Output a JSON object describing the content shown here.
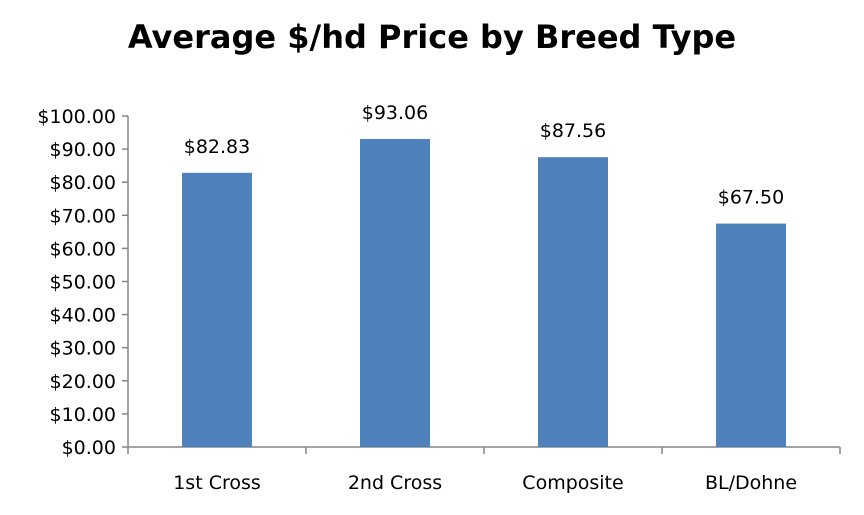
{
  "chart_data": {
    "type": "bar",
    "title": "Average $/hd Price by Breed Type",
    "categories": [
      "1st Cross",
      "2nd Cross",
      "Composite",
      "BL/Dohne"
    ],
    "values": [
      82.83,
      93.06,
      87.56,
      67.5
    ],
    "data_labels": [
      "$82.83",
      "$93.06",
      "$87.56",
      "$67.50"
    ],
    "y_ticks": [
      "$0.00",
      "$10.00",
      "$20.00",
      "$30.00",
      "$40.00",
      "$50.00",
      "$60.00",
      "$70.00",
      "$80.00",
      "$90.00",
      "$100.00"
    ],
    "ylim": [
      0,
      100
    ],
    "xlabel": "",
    "ylabel": "",
    "grid": false,
    "legend": "none",
    "bar_color": "#4f81bd",
    "axis_color": "#868686"
  }
}
